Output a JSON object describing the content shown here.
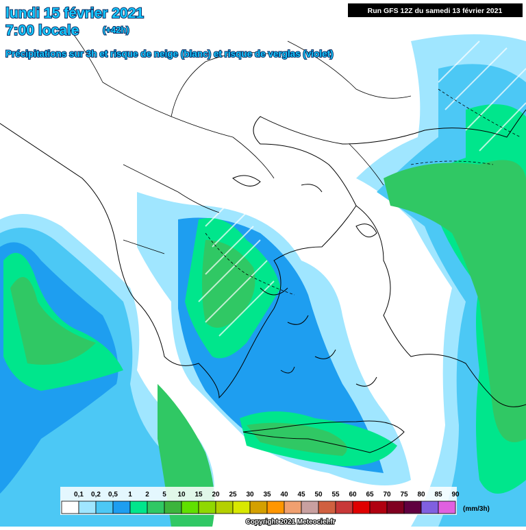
{
  "header": {
    "date": "lundi 15 février 2021",
    "time": "7:00 locale",
    "lead": "(+42h)",
    "subtitle": "Précipitations sur 3h et risque de neige (blanc) et risque de verglas (violet)",
    "run": "Run GFS 12Z du samedi 13 février 2021"
  },
  "legend": {
    "unit": "(mm/3h)",
    "items": [
      {
        "label": "0,1",
        "color": "#ffffff"
      },
      {
        "label": "0,2",
        "color": "#a0e6ff"
      },
      {
        "label": "0,5",
        "color": "#4cc8f5"
      },
      {
        "label": "1",
        "color": "#1e9ef0"
      },
      {
        "label": "2",
        "color": "#00e68c"
      },
      {
        "label": "5",
        "color": "#30c864"
      },
      {
        "label": "10",
        "color": "#3cb43c"
      },
      {
        "label": "15",
        "color": "#60e000"
      },
      {
        "label": "20",
        "color": "#90d800"
      },
      {
        "label": "25",
        "color": "#b4d000"
      },
      {
        "label": "30",
        "color": "#d8e800"
      },
      {
        "label": "35",
        "color": "#d4a000"
      },
      {
        "label": "40",
        "color": "#ff9600"
      },
      {
        "label": "45",
        "color": "#f0a070"
      },
      {
        "label": "50",
        "color": "#c8a0a0"
      },
      {
        "label": "55",
        "color": "#d06040"
      },
      {
        "label": "60",
        "color": "#c83838"
      },
      {
        "label": "65",
        "color": "#e00000"
      },
      {
        "label": "70",
        "color": "#b00010"
      },
      {
        "label": "75",
        "color": "#800020"
      },
      {
        "label": "80",
        "color": "#600040"
      },
      {
        "label": "85",
        "color": "#8060e0"
      },
      {
        "label": "90",
        "color": "#e060e0"
      }
    ]
  },
  "footer": {
    "copyright": "Copyright 2021 Meteociel.fr"
  }
}
